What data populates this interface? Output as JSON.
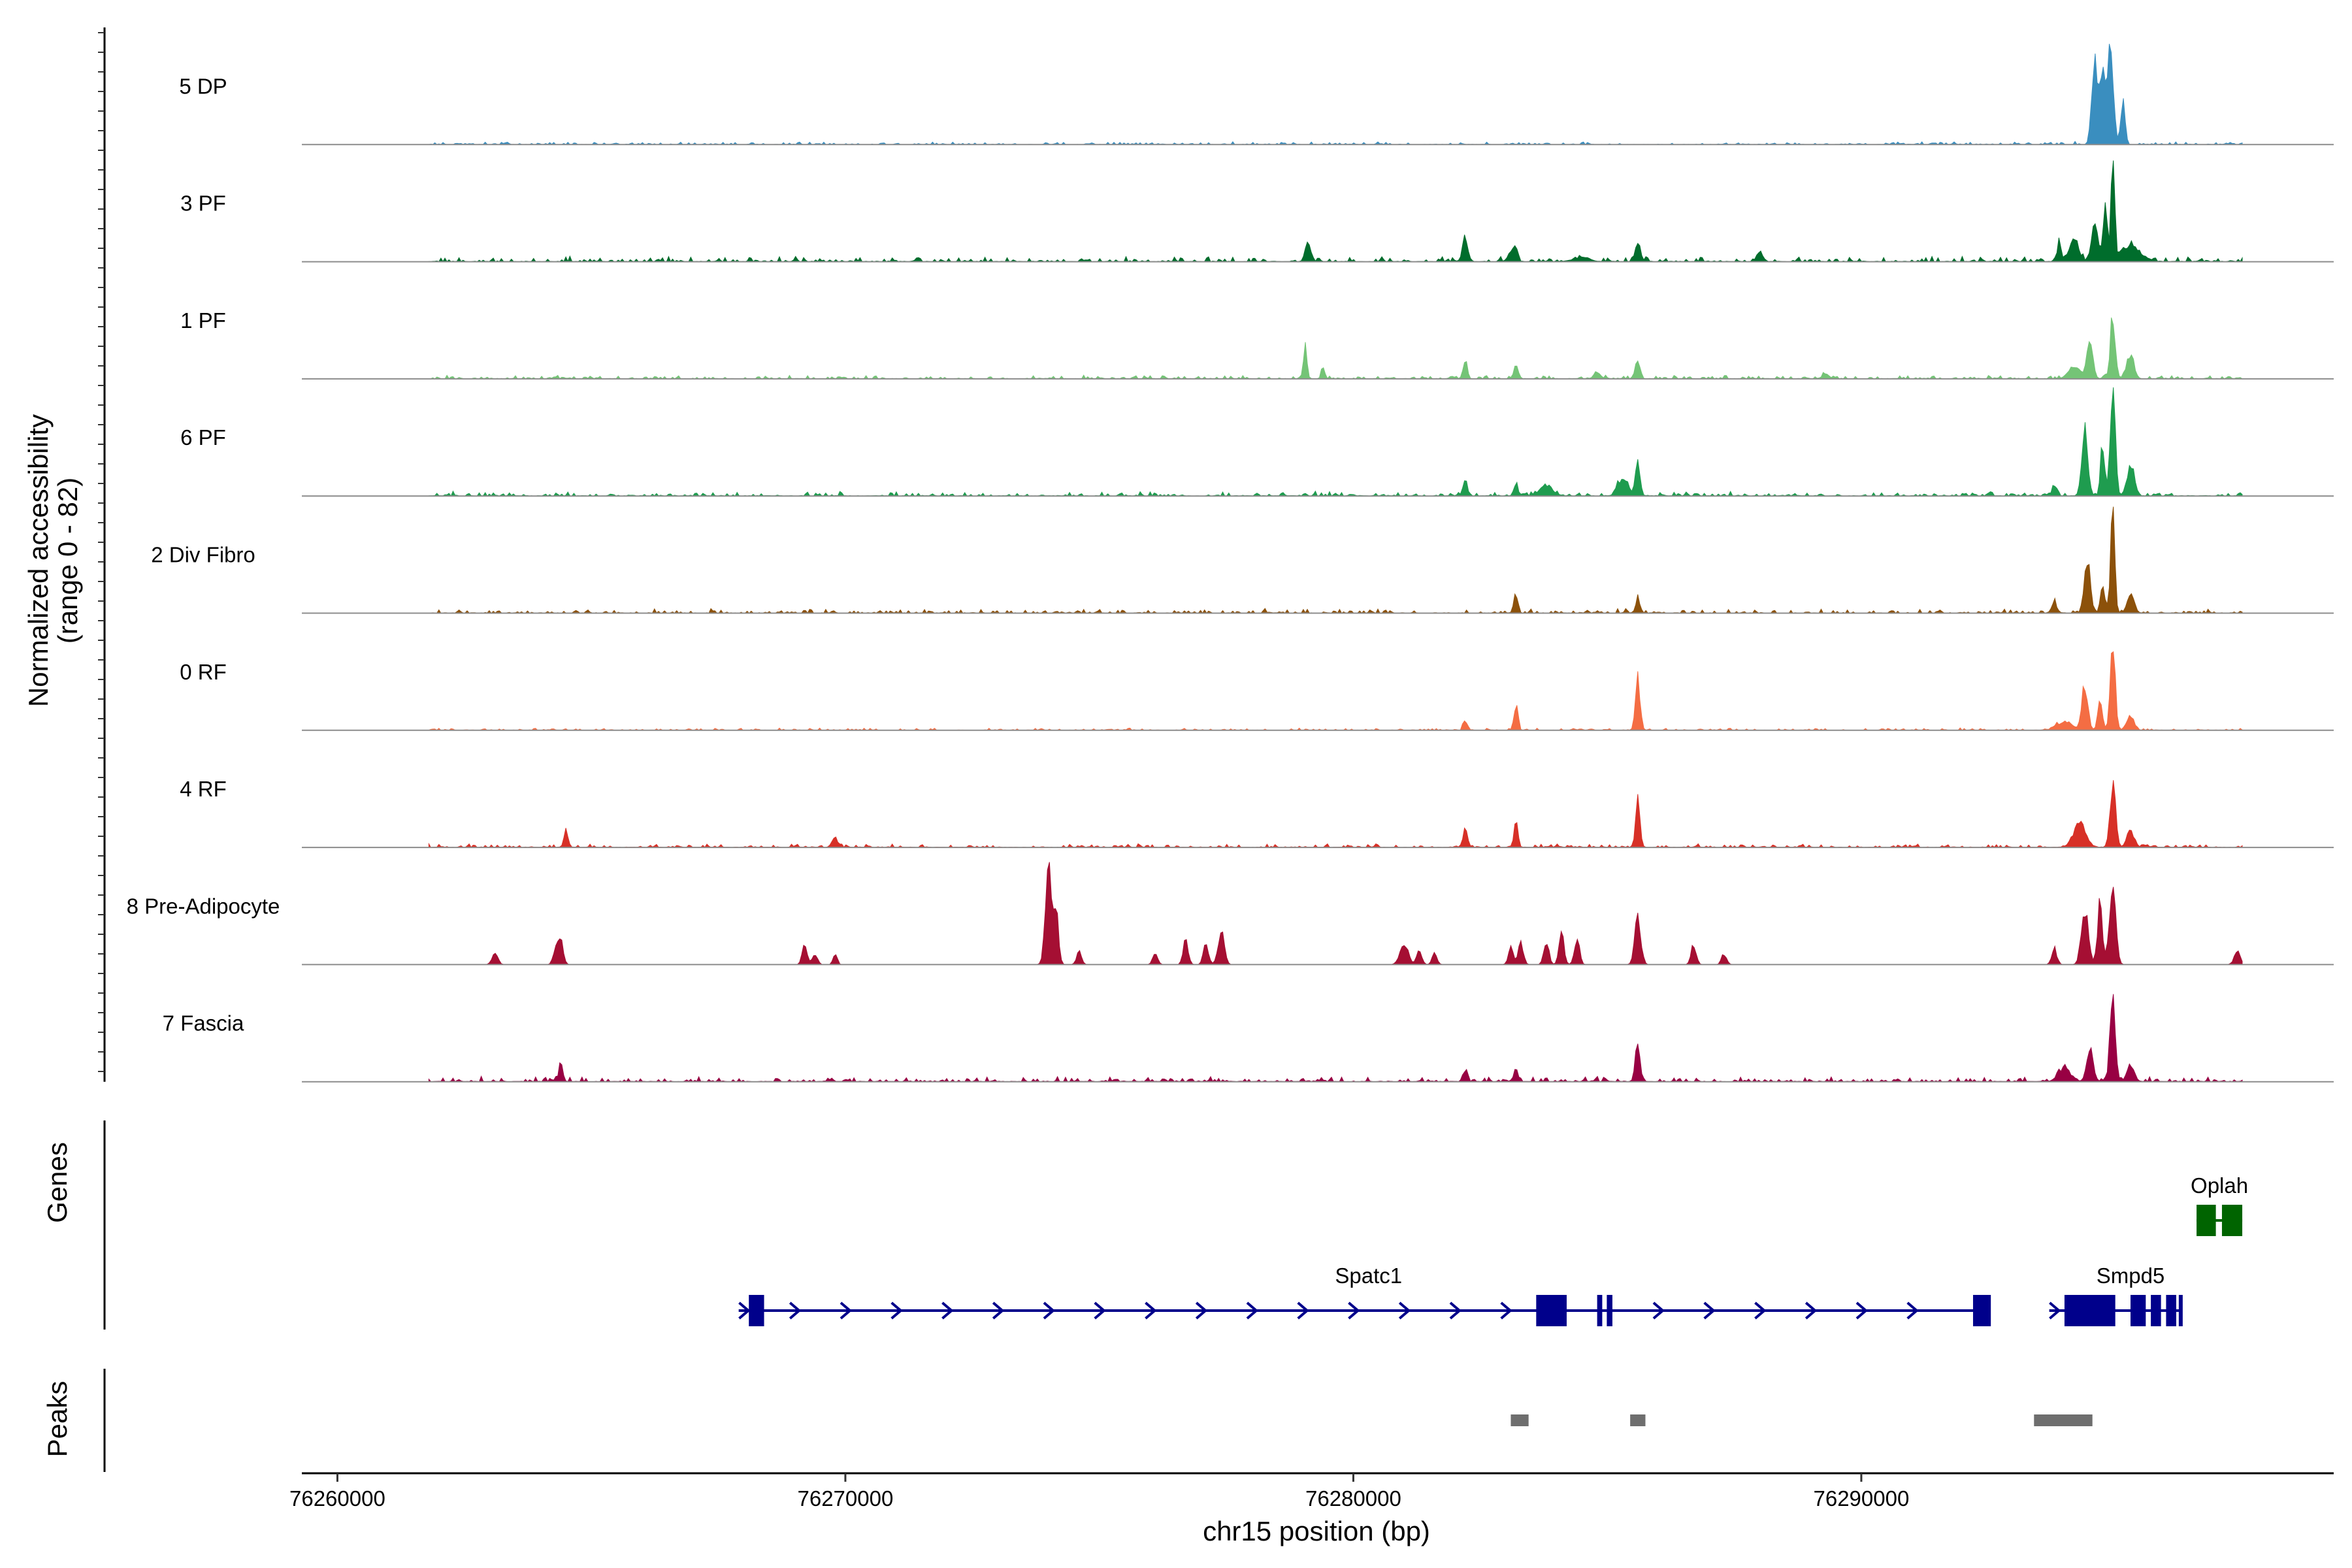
{
  "chart_data": {
    "type": "area",
    "title": "",
    "ylabel_line1": "Normalized accessibility",
    "ylabel_line2": "(range 0 - 82)",
    "xlabel": "chr15 position (bp)",
    "xlim": [
      76259300,
      76299300
    ],
    "ylim": [
      0,
      82
    ],
    "xticks": [
      76260000,
      76270000,
      76280000,
      76290000
    ],
    "xtick_labels": [
      "76260000",
      "76270000",
      "76280000",
      "76290000"
    ],
    "signal_start": 76261800,
    "signal_end": 76297500,
    "series": [
      {
        "name": "5 DP",
        "color": "#3a8ebf",
        "noise": 0.018,
        "blips": [],
        "peaks": [
          [
            76294200,
            10,
            0.04
          ],
          [
            76294600,
            58,
            0.82
          ],
          [
            76294750,
            50,
            0.62
          ],
          [
            76294900,
            60,
            0.86
          ],
          [
            76295150,
            40,
            0.45
          ]
        ]
      },
      {
        "name": "3 PF",
        "color": "#006d2c",
        "noise": 0.035,
        "blips": [
          76279100,
          76282200,
          76283100,
          76285600,
          76288000
        ],
        "peaks": [
          [
            76279100,
            45,
            0.12
          ],
          [
            76282200,
            45,
            0.15
          ],
          [
            76283200,
            40,
            0.12
          ],
          [
            76284500,
            150,
            0.04
          ],
          [
            76285600,
            50,
            0.1
          ],
          [
            76293900,
            40,
            0.2
          ],
          [
            76294200,
            80,
            0.22
          ],
          [
            76294600,
            60,
            0.35
          ],
          [
            76294800,
            40,
            0.55
          ],
          [
            76294950,
            35,
            0.95
          ],
          [
            76295300,
            200,
            0.14
          ]
        ]
      },
      {
        "name": "1 PF",
        "color": "#74c476",
        "noise": 0.025,
        "blips": [
          76284800,
          76289300
        ],
        "peaks": [
          [
            76279050,
            35,
            0.3
          ],
          [
            76279400,
            30,
            0.12
          ],
          [
            76282200,
            40,
            0.18
          ],
          [
            76283200,
            40,
            0.12
          ],
          [
            76285600,
            45,
            0.18
          ],
          [
            76294200,
            120,
            0.1
          ],
          [
            76294500,
            60,
            0.33
          ],
          [
            76294950,
            50,
            0.55
          ],
          [
            76295300,
            70,
            0.22
          ]
        ]
      },
      {
        "name": "6 PF",
        "color": "#1f9c4f",
        "noise": 0.03,
        "blips": [
          76285200,
          76285400
        ],
        "peaks": [
          [
            76282200,
            40,
            0.17
          ],
          [
            76283200,
            40,
            0.12
          ],
          [
            76283800,
            120,
            0.1
          ],
          [
            76285600,
            45,
            0.3
          ],
          [
            76285300,
            70,
            0.1
          ],
          [
            76293800,
            50,
            0.08
          ],
          [
            76294400,
            60,
            0.58
          ],
          [
            76294750,
            40,
            0.45
          ],
          [
            76294950,
            50,
            0.9
          ],
          [
            76295300,
            70,
            0.3
          ]
        ]
      },
      {
        "name": "2 Div Fibro",
        "color": "#8c510a",
        "noise": 0.03,
        "blips": [],
        "peaks": [
          [
            76283200,
            40,
            0.18
          ],
          [
            76285600,
            35,
            0.15
          ],
          [
            76293800,
            50,
            0.1
          ],
          [
            76294450,
            60,
            0.48
          ],
          [
            76294750,
            40,
            0.3
          ],
          [
            76294950,
            40,
            0.95
          ],
          [
            76295300,
            70,
            0.16
          ]
        ]
      },
      {
        "name": "0 RF",
        "color": "#f46d43",
        "noise": 0.015,
        "blips": [],
        "peaks": [
          [
            76282200,
            35,
            0.1
          ],
          [
            76283200,
            40,
            0.22
          ],
          [
            76285600,
            45,
            0.48
          ],
          [
            76294000,
            150,
            0.08
          ],
          [
            76294400,
            60,
            0.4
          ],
          [
            76294700,
            45,
            0.25
          ],
          [
            76294950,
            50,
            0.72
          ],
          [
            76295300,
            70,
            0.14
          ]
        ]
      },
      {
        "name": "4 RF",
        "color": "#d73027",
        "noise": 0.025,
        "blips": [
          76269800,
          76282200
        ],
        "peaks": [
          [
            76264500,
            40,
            0.16
          ],
          [
            76282200,
            35,
            0.1
          ],
          [
            76283200,
            40,
            0.22
          ],
          [
            76285600,
            45,
            0.42
          ],
          [
            76294300,
            120,
            0.22
          ],
          [
            76294950,
            55,
            0.55
          ],
          [
            76295300,
            70,
            0.16
          ]
        ]
      },
      {
        "name": "8 Pre-Adipocyte",
        "color": "#a50f33",
        "noise": 0,
        "blips": [],
        "peaks": [
          [
            76263100,
            60,
            0.1
          ],
          [
            76264300,
            50,
            0.16
          ],
          [
            76264400,
            50,
            0.2
          ],
          [
            76269200,
            50,
            0.18
          ],
          [
            76269400,
            50,
            0.1
          ],
          [
            76269800,
            40,
            0.1
          ],
          [
            76274000,
            60,
            0.95
          ],
          [
            76274150,
            50,
            0.45
          ],
          [
            76274600,
            50,
            0.12
          ],
          [
            76276100,
            50,
            0.1
          ],
          [
            76276700,
            50,
            0.22
          ],
          [
            76277100,
            50,
            0.2
          ],
          [
            76277400,
            60,
            0.32
          ],
          [
            76281000,
            80,
            0.2
          ],
          [
            76281300,
            50,
            0.14
          ],
          [
            76281600,
            50,
            0.1
          ],
          [
            76283100,
            50,
            0.15
          ],
          [
            76283300,
            50,
            0.2
          ],
          [
            76283800,
            50,
            0.22
          ],
          [
            76284100,
            50,
            0.3
          ],
          [
            76284400,
            50,
            0.25
          ],
          [
            76285600,
            60,
            0.45
          ],
          [
            76286700,
            50,
            0.18
          ],
          [
            76287300,
            50,
            0.1
          ],
          [
            76293800,
            50,
            0.15
          ],
          [
            76294400,
            70,
            0.5
          ],
          [
            76294700,
            50,
            0.55
          ],
          [
            76294950,
            60,
            0.8
          ],
          [
            76297400,
            60,
            0.12
          ]
        ]
      },
      {
        "name": "7 Fascia",
        "color": "#980043",
        "noise": 0.035,
        "blips": [],
        "peaks": [
          [
            76264400,
            40,
            0.16
          ],
          [
            76282200,
            40,
            0.1
          ],
          [
            76283200,
            40,
            0.12
          ],
          [
            76285600,
            45,
            0.4
          ],
          [
            76294000,
            120,
            0.12
          ],
          [
            76294500,
            60,
            0.3
          ],
          [
            76294950,
            50,
            0.88
          ],
          [
            76295300,
            70,
            0.14
          ]
        ]
      }
    ],
    "genes": [
      {
        "name": "Oplah",
        "color": "#006400",
        "strand": "+",
        "start": 76296600,
        "end": 76297500,
        "exons": [
          [
            76296600,
            76296980
          ],
          [
            76297100,
            76297500
          ]
        ],
        "arrows": []
      },
      {
        "name": "Spatc1",
        "color": "#00008b",
        "strand": "+",
        "start": 76267900,
        "end": 76292500,
        "exons": [
          [
            76268100,
            76268400
          ],
          [
            76283600,
            76284200
          ],
          [
            76284800,
            76284900
          ],
          [
            76284990,
            76285100
          ],
          [
            76292200,
            76292550
          ]
        ],
        "arrows": [
          76268000,
          76269000,
          76270000,
          76271000,
          76272000,
          76273000,
          76274000,
          76275000,
          76276000,
          76277000,
          76278000,
          76279000,
          76280000,
          76281000,
          76282000,
          76283000,
          76286000,
          76287000,
          76288000,
          76289000,
          76290000,
          76291000
        ]
      },
      {
        "name": "Smpd5",
        "color": "#00008b",
        "strand": "+",
        "start": 76293700,
        "end": 76296300,
        "exons": [
          [
            76294000,
            76295000
          ],
          [
            76295300,
            76295600
          ],
          [
            76295700,
            76295900
          ],
          [
            76296000,
            76296200
          ],
          [
            76296250,
            76296300
          ]
        ],
        "arrows": [
          76293800
        ]
      }
    ],
    "peaks_track": [
      [
        76283100,
        76283450
      ],
      [
        76285450,
        76285750
      ],
      [
        76293400,
        76294550
      ]
    ],
    "panel_labels": {
      "genes": "Genes",
      "peaks": "Peaks"
    }
  }
}
